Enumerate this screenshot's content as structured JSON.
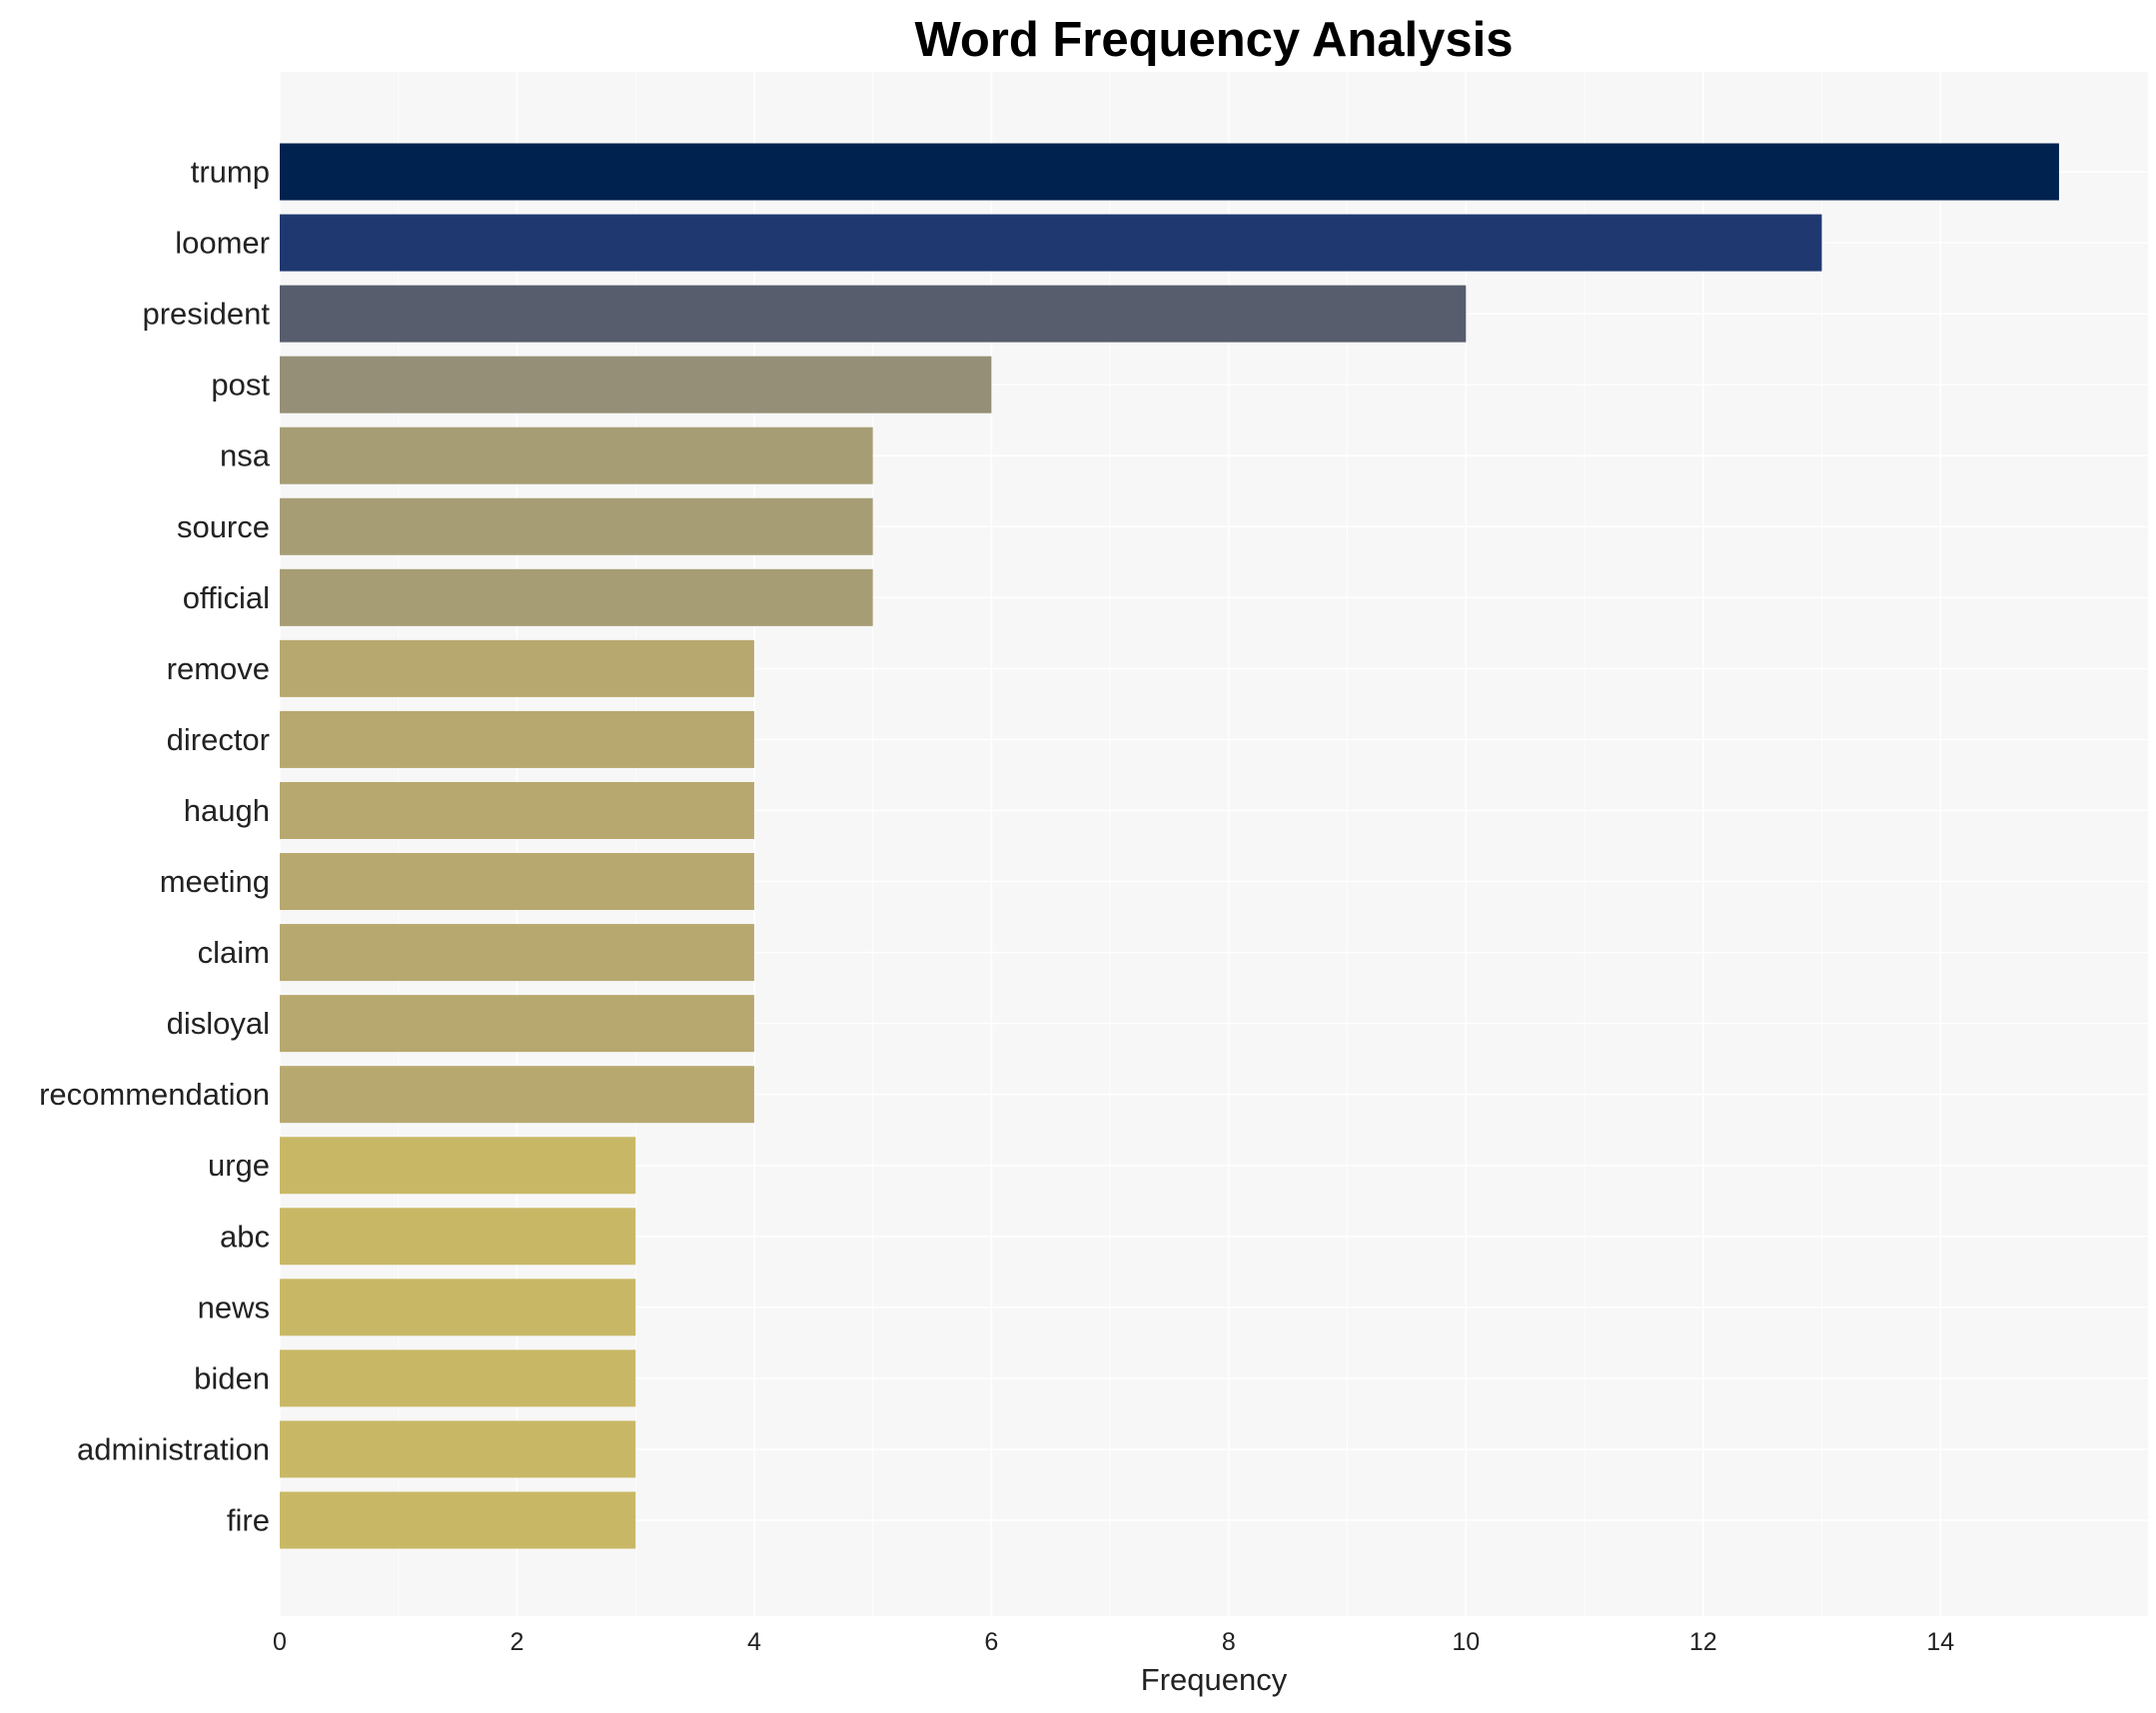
{
  "chart_data": {
    "type": "bar",
    "orientation": "horizontal",
    "title": "Word Frequency Analysis",
    "xlabel": "Frequency",
    "ylabel": "",
    "xlim": [
      0,
      15.75
    ],
    "x_ticks": [
      "0",
      "2",
      "4",
      "6",
      "8",
      "10",
      "12",
      "14"
    ],
    "grid": true,
    "categories": [
      "trump",
      "loomer",
      "president",
      "post",
      "nsa",
      "source",
      "official",
      "remove",
      "director",
      "haugh",
      "meeting",
      "claim",
      "disloyal",
      "recommendation",
      "urge",
      "abc",
      "news",
      "biden",
      "administration",
      "fire"
    ],
    "values": [
      15,
      13,
      10,
      6,
      5,
      5,
      5,
      4,
      4,
      4,
      4,
      4,
      4,
      4,
      3,
      3,
      3,
      3,
      3,
      3
    ],
    "colors": [
      "#00224e",
      "#1f3870",
      "#575d6d",
      "#958f78",
      "#a69d75",
      "#a69d75",
      "#a69d75",
      "#b7a86f",
      "#b7a86f",
      "#b7a86f",
      "#b7a86f",
      "#b7a86f",
      "#b7a86f",
      "#b7a86f",
      "#c8b866",
      "#c8b866",
      "#c8b866",
      "#c8b866",
      "#c8b866",
      "#c8b866"
    ],
    "plot_background": "#f7f7f7",
    "grid_color": "#ffffff"
  }
}
